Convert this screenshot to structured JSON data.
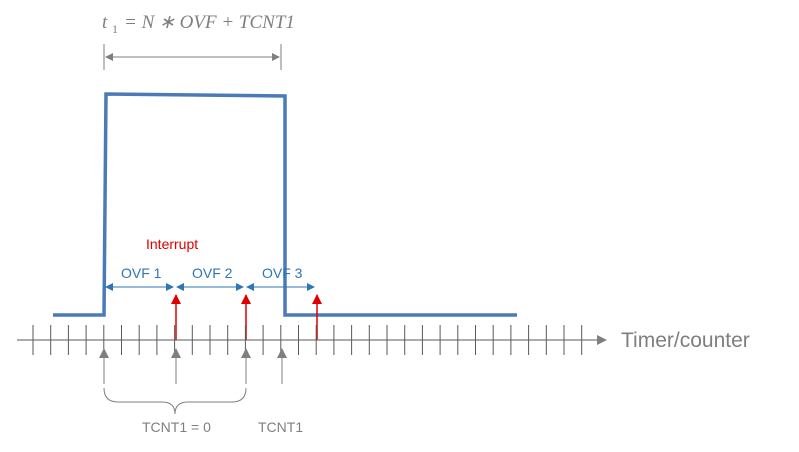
{
  "formula": {
    "t_symbol": "t",
    "t_subscript": "1",
    "rhs": "= N  ∗ OVF + TCNT1"
  },
  "signal": {
    "color": "#4a7bb7"
  },
  "overflow_labels": [
    "OVF 1",
    "OVF 2",
    "OVF 3"
  ],
  "interrupt_label": "Interrupt",
  "axis_label": "Timer/counter",
  "brace_label": "TCNT1 = 0",
  "tcnt1_label": "TCNT1",
  "colors": {
    "signal": "#4a7bb7",
    "ovf": "#2e75b6",
    "interrupt": "#e00000",
    "gray": "#7f7f7f",
    "axis": "#595959"
  },
  "icons": {
    "interrupt_arrow": "red-up-arrow",
    "marker_arrow": "gray-up-arrow",
    "span_arrow": "double-headed-arrow"
  }
}
